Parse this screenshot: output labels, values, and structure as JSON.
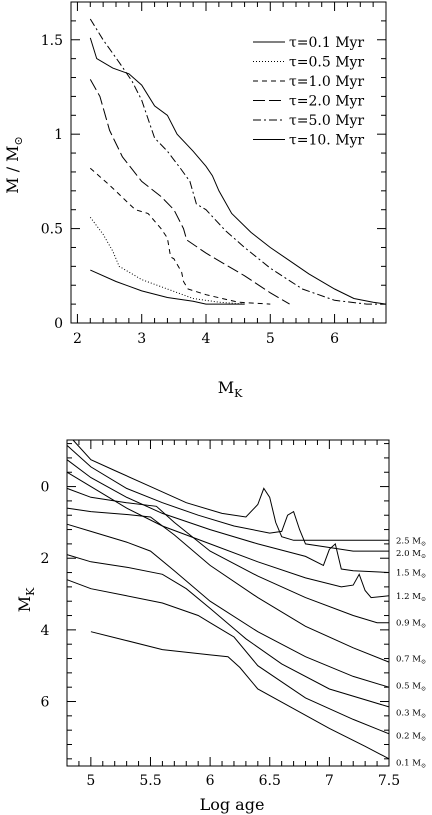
{
  "chart_data": [
    {
      "type": "line",
      "xlabel": "M",
      "xlabel_sub": "K",
      "ylabel": "M / M",
      "ylabel_sub": "⊙",
      "xlim": [
        1.9,
        6.8
      ],
      "ylim": [
        0,
        1.7
      ],
      "xticks": [
        2,
        3,
        4,
        5,
        6
      ],
      "xtick_labels": [
        "2",
        "3",
        "4",
        "5",
        "6"
      ],
      "yticks": [
        0,
        0.5,
        1,
        1.5
      ],
      "ytick_labels": [
        "0",
        "0.5",
        "1",
        "1.5"
      ],
      "legend_position": "top-right",
      "series": [
        {
          "name": "τ=0.1 Myr",
          "dash": "",
          "points": [
            [
              2.2,
              0.28
            ],
            [
              2.6,
              0.22
            ],
            [
              3.0,
              0.17
            ],
            [
              3.4,
              0.135
            ],
            [
              3.8,
              0.115
            ],
            [
              4.0,
              0.1
            ],
            [
              4.6,
              0.1
            ]
          ]
        },
        {
          "name": "τ=0.5 Myr",
          "dash": "1,2",
          "points": [
            [
              2.2,
              0.56
            ],
            [
              2.4,
              0.47
            ],
            [
              2.55,
              0.38
            ],
            [
              2.65,
              0.3
            ],
            [
              2.7,
              0.29
            ],
            [
              3.0,
              0.23
            ],
            [
              3.4,
              0.18
            ],
            [
              3.8,
              0.13
            ],
            [
              4.2,
              0.11
            ],
            [
              4.6,
              0.1
            ]
          ]
        },
        {
          "name": "τ=1.0 Myr",
          "dash": "5,4",
          "points": [
            [
              2.2,
              0.82
            ],
            [
              2.5,
              0.73
            ],
            [
              2.9,
              0.6
            ],
            [
              3.1,
              0.58
            ],
            [
              3.3,
              0.5
            ],
            [
              3.4,
              0.45
            ],
            [
              3.45,
              0.35
            ],
            [
              3.5,
              0.34
            ],
            [
              3.62,
              0.27
            ],
            [
              3.65,
              0.22
            ],
            [
              3.72,
              0.18
            ],
            [
              4.0,
              0.15
            ],
            [
              4.5,
              0.11
            ],
            [
              5.0,
              0.1
            ]
          ]
        },
        {
          "name": "τ=2.0 Myr",
          "dash": "12,4",
          "points": [
            [
              2.2,
              1.29
            ],
            [
              2.35,
              1.2
            ],
            [
              2.5,
              1.02
            ],
            [
              2.7,
              0.88
            ],
            [
              3.0,
              0.75
            ],
            [
              3.3,
              0.67
            ],
            [
              3.5,
              0.6
            ],
            [
              3.65,
              0.5
            ],
            [
              3.7,
              0.44
            ],
            [
              4.0,
              0.37
            ],
            [
              4.3,
              0.31
            ],
            [
              4.6,
              0.25
            ],
            [
              5.0,
              0.16
            ],
            [
              5.3,
              0.1
            ]
          ]
        },
        {
          "name": "τ=5.0 Myr",
          "dash": "8,3,2,3",
          "points": [
            [
              2.2,
              1.61
            ],
            [
              2.4,
              1.5
            ],
            [
              2.65,
              1.38
            ],
            [
              2.85,
              1.28
            ],
            [
              3.0,
              1.18
            ],
            [
              3.2,
              0.98
            ],
            [
              3.4,
              0.91
            ],
            [
              3.6,
              0.82
            ],
            [
              3.75,
              0.75
            ],
            [
              3.85,
              0.63
            ],
            [
              4.0,
              0.6
            ],
            [
              4.3,
              0.49
            ],
            [
              4.6,
              0.4
            ],
            [
              5.0,
              0.29
            ],
            [
              5.5,
              0.18
            ],
            [
              6.0,
              0.12
            ],
            [
              6.5,
              0.1
            ],
            [
              6.8,
              0.1
            ]
          ]
        },
        {
          "name": "τ=10. Myr",
          "dash": "",
          "points": [
            [
              2.2,
              1.51
            ],
            [
              2.3,
              1.4
            ],
            [
              2.55,
              1.35
            ],
            [
              2.8,
              1.32
            ],
            [
              3.0,
              1.26
            ],
            [
              3.2,
              1.15
            ],
            [
              3.4,
              1.1
            ],
            [
              3.55,
              1.0
            ],
            [
              3.8,
              0.91
            ],
            [
              4.0,
              0.83
            ],
            [
              4.1,
              0.78
            ],
            [
              4.2,
              0.7
            ],
            [
              4.4,
              0.58
            ],
            [
              4.7,
              0.48
            ],
            [
              5.0,
              0.4
            ],
            [
              5.3,
              0.33
            ],
            [
              5.6,
              0.26
            ],
            [
              6.0,
              0.18
            ],
            [
              6.3,
              0.13
            ],
            [
              6.6,
              0.11
            ],
            [
              6.8,
              0.1
            ]
          ]
        }
      ]
    },
    {
      "type": "line",
      "xlabel": "Log age",
      "ylabel": "M",
      "ylabel_sub": "K",
      "xlim": [
        4.8,
        7.5
      ],
      "ylim": [
        7.8,
        -1.3
      ],
      "xticks": [
        5,
        5.5,
        6,
        6.5,
        7,
        7.5
      ],
      "xtick_labels": [
        "5",
        "5.5",
        "6",
        "6.5",
        "7",
        "7.5"
      ],
      "yticks": [
        0,
        2,
        4,
        6
      ],
      "ytick_labels": [
        "0",
        "2",
        "4",
        "6"
      ],
      "series": [
        {
          "name": "2.5 M",
          "points": [
            [
              4.85,
              -1.32
            ],
            [
              5.0,
              -0.75
            ],
            [
              5.2,
              -0.45
            ],
            [
              5.5,
              0.0
            ],
            [
              5.8,
              0.45
            ],
            [
              6.1,
              0.75
            ],
            [
              6.3,
              0.85
            ],
            [
              6.4,
              0.5
            ],
            [
              6.45,
              0.05
            ],
            [
              6.5,
              0.3
            ],
            [
              6.55,
              1.0
            ],
            [
              6.6,
              1.4
            ],
            [
              6.7,
              1.5
            ],
            [
              7.0,
              1.5
            ],
            [
              7.5,
              1.5
            ]
          ]
        },
        {
          "name": "2.0 M",
          "points": [
            [
              4.8,
              -1.15
            ],
            [
              5.0,
              -0.55
            ],
            [
              5.3,
              0.05
            ],
            [
              5.6,
              0.45
            ],
            [
              5.9,
              0.8
            ],
            [
              6.2,
              1.1
            ],
            [
              6.5,
              1.3
            ],
            [
              6.6,
              1.25
            ],
            [
              6.65,
              0.8
            ],
            [
              6.7,
              0.7
            ],
            [
              6.75,
              1.2
            ],
            [
              6.8,
              1.6
            ],
            [
              7.0,
              1.7
            ],
            [
              7.2,
              1.8
            ],
            [
              7.5,
              1.8
            ]
          ]
        },
        {
          "name": "1.5 M",
          "points": [
            [
              4.8,
              -0.75
            ],
            [
              5.0,
              -0.25
            ],
            [
              5.3,
              0.3
            ],
            [
              5.6,
              0.75
            ],
            [
              6.0,
              1.2
            ],
            [
              6.4,
              1.6
            ],
            [
              6.8,
              1.95
            ],
            [
              6.95,
              2.2
            ],
            [
              7.0,
              1.75
            ],
            [
              7.05,
              1.6
            ],
            [
              7.1,
              2.3
            ],
            [
              7.2,
              2.35
            ],
            [
              7.5,
              2.4
            ]
          ]
        },
        {
          "name": "1.2 M",
          "points": [
            [
              4.8,
              -0.4
            ],
            [
              5.0,
              0.0
            ],
            [
              5.3,
              0.6
            ],
            [
              5.6,
              1.1
            ],
            [
              6.0,
              1.6
            ],
            [
              6.4,
              2.1
            ],
            [
              6.8,
              2.55
            ],
            [
              7.1,
              2.8
            ],
            [
              7.2,
              2.75
            ],
            [
              7.25,
              2.45
            ],
            [
              7.3,
              2.9
            ],
            [
              7.35,
              3.1
            ],
            [
              7.5,
              3.05
            ]
          ]
        },
        {
          "name": "0.9 M",
          "points": [
            [
              4.8,
              0.05
            ],
            [
              5.0,
              0.3
            ],
            [
              5.3,
              0.45
            ],
            [
              5.55,
              0.55
            ],
            [
              5.7,
              1.0
            ],
            [
              6.0,
              1.8
            ],
            [
              6.4,
              2.5
            ],
            [
              6.8,
              3.1
            ],
            [
              7.2,
              3.6
            ],
            [
              7.4,
              3.8
            ],
            [
              7.5,
              3.8
            ]
          ]
        },
        {
          "name": "0.7 M",
          "points": [
            [
              4.8,
              0.6
            ],
            [
              5.0,
              0.7
            ],
            [
              5.3,
              0.78
            ],
            [
              5.5,
              0.85
            ],
            [
              5.7,
              1.35
            ],
            [
              6.0,
              2.2
            ],
            [
              6.4,
              3.1
            ],
            [
              6.8,
              3.9
            ],
            [
              7.2,
              4.5
            ],
            [
              7.5,
              4.9
            ]
          ]
        },
        {
          "name": "0.5 M",
          "points": [
            [
              4.8,
              1.05
            ],
            [
              5.0,
              1.25
            ],
            [
              5.3,
              1.55
            ],
            [
              5.5,
              1.8
            ],
            [
              5.7,
              2.35
            ],
            [
              6.0,
              3.2
            ],
            [
              6.4,
              4.05
            ],
            [
              6.8,
              4.75
            ],
            [
              7.2,
              5.3
            ],
            [
              7.5,
              5.6
            ]
          ]
        },
        {
          "name": "0.3 M",
          "points": [
            [
              4.8,
              1.9
            ],
            [
              5.0,
              2.1
            ],
            [
              5.3,
              2.25
            ],
            [
              5.6,
              2.45
            ],
            [
              5.8,
              2.85
            ],
            [
              6.0,
              3.4
            ],
            [
              6.3,
              4.25
            ],
            [
              6.6,
              4.95
            ],
            [
              7.0,
              5.65
            ],
            [
              7.5,
              6.15
            ]
          ]
        },
        {
          "name": "0.2 M",
          "points": [
            [
              4.8,
              2.6
            ],
            [
              5.0,
              2.85
            ],
            [
              5.3,
              3.05
            ],
            [
              5.6,
              3.25
            ],
            [
              5.9,
              3.6
            ],
            [
              6.0,
              3.8
            ],
            [
              6.2,
              4.2
            ],
            [
              6.4,
              5.0
            ],
            [
              6.8,
              5.9
            ],
            [
              7.2,
              6.5
            ],
            [
              7.5,
              6.9
            ]
          ]
        },
        {
          "name": "0.1 M",
          "points": [
            [
              5.0,
              4.05
            ],
            [
              5.3,
              4.3
            ],
            [
              5.6,
              4.55
            ],
            [
              6.0,
              4.7
            ],
            [
              6.15,
              4.75
            ],
            [
              6.25,
              5.05
            ],
            [
              6.4,
              5.65
            ],
            [
              6.7,
              6.2
            ],
            [
              7.0,
              6.75
            ],
            [
              7.3,
              7.25
            ],
            [
              7.5,
              7.6
            ]
          ]
        }
      ],
      "curve_labels": [
        {
          "text": "2.5 M",
          "sub": "⊙",
          "y": 1.5
        },
        {
          "text": "2.0 M",
          "sub": "⊙",
          "y": 1.85
        },
        {
          "text": "1.5 M",
          "sub": "⊙",
          "y": 2.4
        },
        {
          "text": "1.2 M",
          "sub": "⊙",
          "y": 3.05
        },
        {
          "text": "0.9 M",
          "sub": "⊙",
          "y": 3.8
        },
        {
          "text": "0.7 M",
          "sub": "⊙",
          "y": 4.8
        },
        {
          "text": "0.5 M",
          "sub": "⊙",
          "y": 5.55
        },
        {
          "text": "0.3 M",
          "sub": "⊙",
          "y": 6.3
        },
        {
          "text": "0.2 M",
          "sub": "⊙",
          "y": 6.95
        },
        {
          "text": "0.1 M",
          "sub": "⊙",
          "y": 7.7
        }
      ]
    }
  ]
}
